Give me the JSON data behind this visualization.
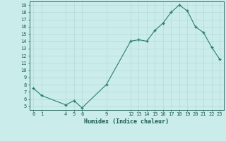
{
  "x": [
    0,
    1,
    4,
    5,
    6,
    9,
    12,
    13,
    14,
    15,
    16,
    17,
    18,
    19,
    20,
    21,
    22,
    23
  ],
  "y": [
    7.5,
    6.5,
    5.2,
    5.8,
    4.8,
    8.0,
    14.0,
    14.2,
    14.0,
    15.5,
    16.5,
    18.0,
    19.0,
    18.2,
    16.0,
    15.2,
    13.2,
    11.5
  ],
  "xlabel": "Humidex (Indice chaleur)",
  "xlim": [
    -0.5,
    23.5
  ],
  "ylim": [
    4.5,
    19.5
  ],
  "yticks": [
    5,
    6,
    7,
    8,
    9,
    10,
    11,
    12,
    13,
    14,
    15,
    16,
    17,
    18,
    19
  ],
  "xtick_positions": [
    0,
    1,
    4,
    5,
    6,
    9,
    12,
    13,
    14,
    15,
    16,
    17,
    18,
    19,
    20,
    21,
    22,
    23
  ],
  "xtick_labels": [
    "0",
    "1",
    "4",
    "5",
    "6",
    "9",
    "12",
    "13",
    "14",
    "15",
    "16",
    "17",
    "18",
    "19",
    "20",
    "21",
    "22",
    "23"
  ],
  "line_color": "#2d7d6e",
  "marker_color": "#2d7d6e",
  "bg_color": "#caecea",
  "grid_color": "#b0d8d0",
  "axis_label_color": "#1a5a50",
  "tick_color": "#1a5a50"
}
